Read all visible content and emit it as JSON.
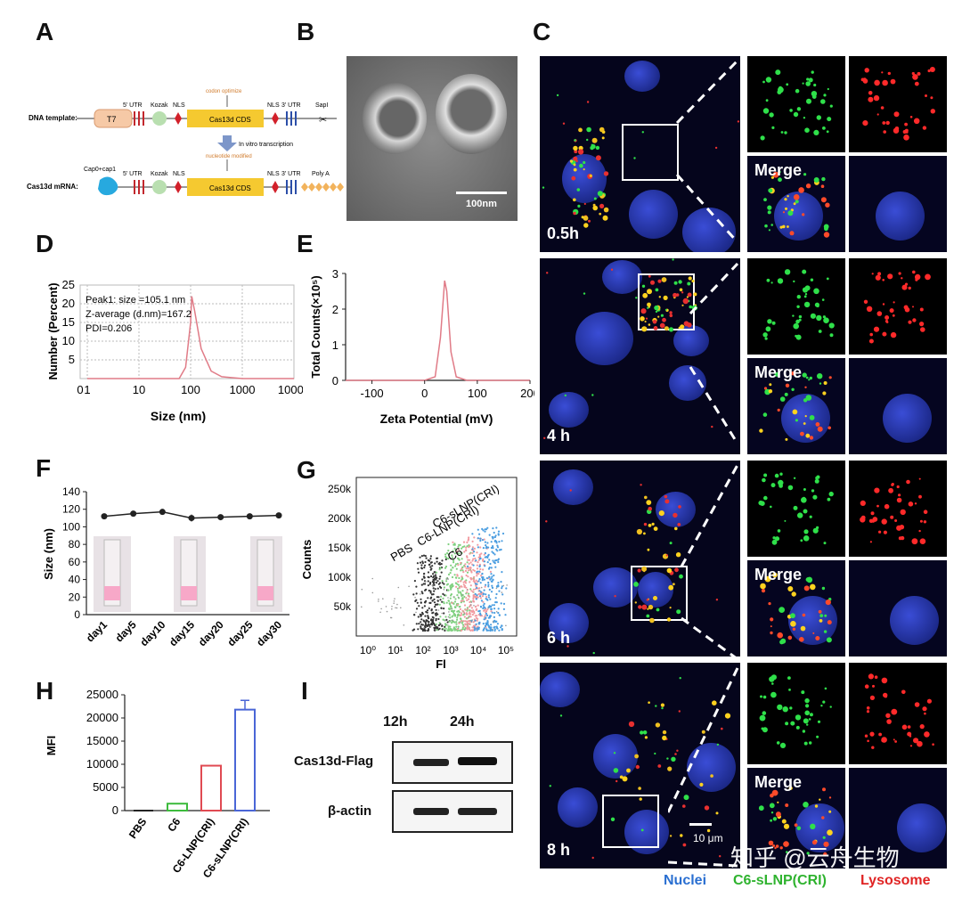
{
  "panels": {
    "A": "A",
    "B": "B",
    "C": "C",
    "D": "D",
    "E": "E",
    "F": "F",
    "G": "G",
    "H": "H",
    "I": "I"
  },
  "panel_a": {
    "dna_label": "DNA template:",
    "mrna_label": "Cas13d mRNA:",
    "t7": "T7",
    "utr5": "5' UTR",
    "kozak": "Kozak",
    "nls": "NLS",
    "codon": "codon optimize",
    "cds": "Cas13d CDS",
    "nls2": "NLS",
    "utr3": "3' UTR",
    "sapi": "SapI",
    "ivt": "In vitro transcription",
    "nuc_mod": "nucleotide modified",
    "cap": "Cap0+cap1",
    "polya": "Poly A"
  },
  "panel_b": {
    "scale": "100nm"
  },
  "panel_d": {
    "peak": "Peak1: size =105.1 nm",
    "zavg": "Z-average (d.nm)=167.2",
    "pdi": "PDI=0.206",
    "ylabel": "Number (Percent)",
    "xlabel": "Size (nm)"
  },
  "panel_e": {
    "ylabel": "Total Counts(×10⁵)",
    "xlabel": "Zeta Potential (mV)"
  },
  "panel_f": {
    "ylabel": "Size (nm)"
  },
  "panel_g": {
    "ylabel": "Counts",
    "xlabel": "Fl",
    "labels": [
      "C6-sLNP(CRI)",
      "C6-LNP(CRI)",
      "PBS",
      "C6"
    ]
  },
  "panel_h": {
    "ylabel": "MFI"
  },
  "panel_i": {
    "col1": "12h",
    "col2": "24h",
    "row1": "Cas13d-Flag",
    "row2": "β-actin"
  },
  "panel_c": {
    "times": [
      "0.5h",
      "4 h",
      "6 h",
      "8 h"
    ],
    "merge": "Merge",
    "scale": "10 μm",
    "legend": {
      "nuclei": "Nuclei",
      "c6": "C6-sLNP(CRI)",
      "lyso": "Lysosome"
    },
    "legend_colors": {
      "nuclei": "#2a6fd1",
      "c6": "#2fb32f",
      "lyso": "#e02424"
    }
  },
  "watermark": "知乎 @云舟生物",
  "chart_data": [
    {
      "type": "line",
      "panel": "D",
      "x": [
        1,
        10,
        60,
        80,
        100,
        105,
        120,
        160,
        250,
        400,
        1000,
        10000
      ],
      "values": [
        0,
        0,
        0,
        3,
        15,
        22,
        18,
        8,
        2,
        0.5,
        0,
        0
      ],
      "xscale": "log",
      "xlim": [
        0,
        10000
      ],
      "ylim": [
        0,
        25
      ],
      "xticks": [
        "0",
        "1",
        "10",
        "100",
        "1000",
        "10000"
      ],
      "yticks": [
        "5",
        "10",
        "15",
        "20",
        "25"
      ],
      "xlabel": "Size (nm)",
      "ylabel": "Number (Percent)",
      "color": "#e07b87"
    },
    {
      "type": "line",
      "panel": "E",
      "x": [
        -150,
        0,
        20,
        30,
        38,
        42,
        50,
        60,
        80,
        200
      ],
      "values": [
        0,
        0,
        0.1,
        1.2,
        2.8,
        2.5,
        0.8,
        0.1,
        0,
        0
      ],
      "xlim": [
        -150,
        200
      ],
      "ylim": [
        0,
        3
      ],
      "xticks": [
        "-100",
        "0",
        "100",
        "200"
      ],
      "yticks": [
        "0",
        "1",
        "2",
        "3"
      ],
      "xlabel": "Zeta Potential (mV)",
      "ylabel": "Total Counts(×10⁵)",
      "color": "#e07b87"
    },
    {
      "type": "line",
      "panel": "F",
      "categories": [
        "day1",
        "day5",
        "day10",
        "day15",
        "day20",
        "day25",
        "day30"
      ],
      "values": [
        112,
        115,
        117,
        110,
        111,
        112,
        113
      ],
      "errors": [
        2,
        3,
        2,
        4,
        3,
        3,
        3
      ],
      "ylim": [
        0,
        140
      ],
      "yticks": [
        "0",
        "20",
        "40",
        "60",
        "80",
        "100",
        "120",
        "140"
      ],
      "ylabel": "Size (nm)"
    },
    {
      "type": "scatter",
      "panel": "G",
      "series": [
        {
          "name": "PBS",
          "center": 2.3,
          "color": "#333333"
        },
        {
          "name": "C6",
          "center": 3.2,
          "color": "#7fd07f"
        },
        {
          "name": "C6-LNP(CRI)",
          "center": 3.8,
          "color": "#f19aa0"
        },
        {
          "name": "C6-sLNP(CRI)",
          "center": 4.4,
          "color": "#4a9de0"
        }
      ],
      "xticks": [
        "10⁰",
        "10¹",
        "10²",
        "10³",
        "10⁴",
        "10⁵"
      ],
      "yticks": [
        "50k",
        "100k",
        "150k",
        "200k",
        "250k"
      ],
      "xlabel": "Fl",
      "ylabel": "Counts"
    },
    {
      "type": "bar",
      "panel": "H",
      "categories": [
        "PBS",
        "C6",
        "C6-LNP(CRI)",
        "C6-sLNP(CRI)"
      ],
      "values": [
        0,
        1500,
        9700,
        21800
      ],
      "errors": [
        0,
        0,
        0,
        2000
      ],
      "colors": [
        "#222222",
        "#3dbb3d",
        "#e04a52",
        "#4a66d6"
      ],
      "ylim": [
        0,
        25000
      ],
      "yticks": [
        "0",
        "5000",
        "10000",
        "15000",
        "20000",
        "25000"
      ],
      "ylabel": "MFI"
    }
  ]
}
